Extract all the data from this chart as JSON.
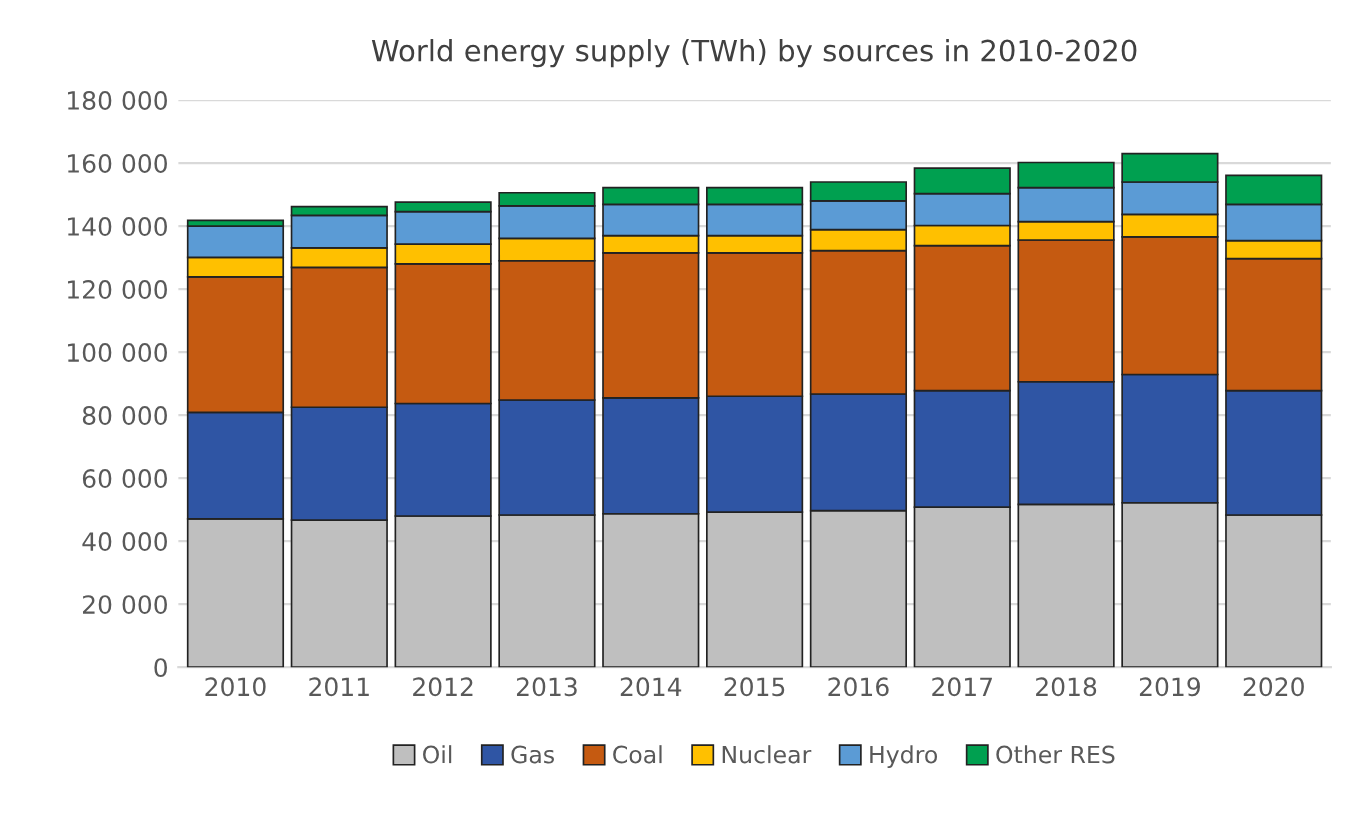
{
  "chart_data": {
    "type": "bar",
    "stacked": true,
    "title": "World energy supply (TWh) by sources in 2010-2020",
    "categories": [
      "2010",
      "2011",
      "2012",
      "2013",
      "2014",
      "2015",
      "2016",
      "2017",
      "2018",
      "2019",
      "2020"
    ],
    "series": [
      {
        "name": "Oil",
        "color": "#bfbfbf",
        "values": [
          47100,
          46700,
          48000,
          48300,
          48700,
          49200,
          49700,
          50800,
          51700,
          52200,
          48300
        ]
      },
      {
        "name": "Gas",
        "color": "#2f55a4",
        "values": [
          33800,
          35800,
          35700,
          36500,
          36800,
          36800,
          37000,
          37000,
          38900,
          40700,
          39500
        ]
      },
      {
        "name": "Coal",
        "color": "#c55a11",
        "values": [
          43000,
          44400,
          44300,
          44200,
          46000,
          45500,
          45500,
          46000,
          45000,
          43700,
          41900
        ]
      },
      {
        "name": "Nuclear",
        "color": "#ffc000",
        "values": [
          6200,
          6200,
          6300,
          7100,
          5500,
          5500,
          6700,
          6400,
          5800,
          7100,
          5700
        ]
      },
      {
        "name": "Hydro",
        "color": "#5b9bd5",
        "values": [
          9900,
          10300,
          10300,
          10300,
          9900,
          9900,
          9100,
          10100,
          10800,
          10300,
          11500
        ]
      },
      {
        "name": "Other RES",
        "color": "#00a050",
        "values": [
          1800,
          2800,
          3000,
          4200,
          5300,
          5300,
          6000,
          8100,
          8000,
          9000,
          9200
        ]
      }
    ],
    "ylim": [
      0,
      180000
    ],
    "yticks": [
      0,
      {
        "value": 20000,
        "label": "20 000"
      },
      {
        "value": 40000,
        "label": "40 000"
      },
      {
        "value": 60000,
        "label": "60 000"
      },
      {
        "value": 80000,
        "label": "80 000"
      },
      {
        "value": 100000,
        "label": "100 000"
      },
      {
        "value": 120000,
        "label": "120 000"
      },
      {
        "value": 140000,
        "label": "140 000"
      },
      {
        "value": 160000,
        "label": "160 000"
      },
      {
        "value": 180000,
        "label": "180 000"
      }
    ],
    "grid": "y",
    "legend": "bottom"
  }
}
